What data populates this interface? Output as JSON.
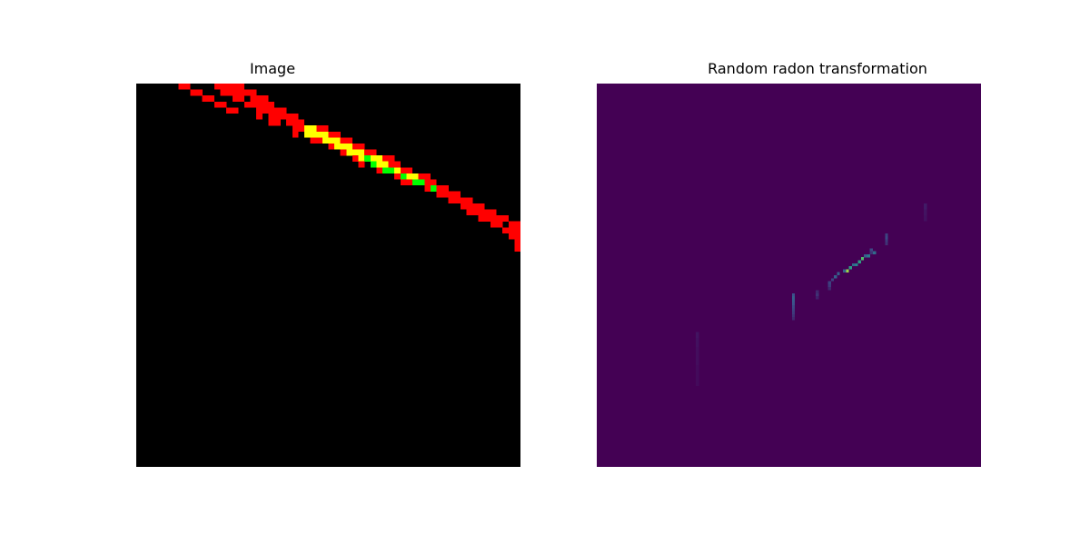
{
  "chart_data": [
    {
      "type": "heatmap",
      "title": "Image",
      "xlabel": "",
      "ylabel": "",
      "grid": false,
      "axes_visible": false,
      "grid_size": [
        64,
        64
      ],
      "colors": {
        "background": "#000000",
        "red": "#ff0000",
        "yellow": "#ffff00",
        "green": "#00ff00"
      },
      "note_cells": "cells listed as [col, row, colorKey] on a 64x64 grid",
      "cells": [
        [
          7,
          0,
          "red"
        ],
        [
          8,
          0,
          "red"
        ],
        [
          13,
          0,
          "red"
        ],
        [
          14,
          0,
          "red"
        ],
        [
          15,
          0,
          "red"
        ],
        [
          16,
          0,
          "red"
        ],
        [
          17,
          0,
          "red"
        ],
        [
          9,
          1,
          "red"
        ],
        [
          10,
          1,
          "red"
        ],
        [
          14,
          1,
          "red"
        ],
        [
          15,
          1,
          "red"
        ],
        [
          16,
          1,
          "red"
        ],
        [
          17,
          1,
          "red"
        ],
        [
          18,
          1,
          "red"
        ],
        [
          19,
          1,
          "red"
        ],
        [
          11,
          2,
          "red"
        ],
        [
          12,
          2,
          "red"
        ],
        [
          16,
          2,
          "red"
        ],
        [
          17,
          2,
          "red"
        ],
        [
          19,
          2,
          "red"
        ],
        [
          20,
          2,
          "red"
        ],
        [
          21,
          2,
          "red"
        ],
        [
          13,
          3,
          "red"
        ],
        [
          14,
          3,
          "red"
        ],
        [
          18,
          3,
          "red"
        ],
        [
          19,
          3,
          "red"
        ],
        [
          20,
          3,
          "red"
        ],
        [
          21,
          3,
          "red"
        ],
        [
          22,
          3,
          "red"
        ],
        [
          15,
          4,
          "red"
        ],
        [
          16,
          4,
          "red"
        ],
        [
          20,
          4,
          "red"
        ],
        [
          21,
          4,
          "red"
        ],
        [
          22,
          4,
          "red"
        ],
        [
          23,
          4,
          "red"
        ],
        [
          24,
          4,
          "red"
        ],
        [
          20,
          5,
          "red"
        ],
        [
          22,
          5,
          "red"
        ],
        [
          23,
          5,
          "red"
        ],
        [
          24,
          5,
          "red"
        ],
        [
          25,
          5,
          "red"
        ],
        [
          26,
          5,
          "red"
        ],
        [
          22,
          6,
          "red"
        ],
        [
          23,
          6,
          "red"
        ],
        [
          25,
          6,
          "red"
        ],
        [
          26,
          6,
          "red"
        ],
        [
          27,
          6,
          "red"
        ],
        [
          26,
          7,
          "red"
        ],
        [
          27,
          7,
          "red"
        ],
        [
          28,
          7,
          "yellow"
        ],
        [
          29,
          7,
          "yellow"
        ],
        [
          30,
          7,
          "red"
        ],
        [
          31,
          7,
          "red"
        ],
        [
          26,
          8,
          "red"
        ],
        [
          28,
          8,
          "yellow"
        ],
        [
          29,
          8,
          "yellow"
        ],
        [
          30,
          8,
          "yellow"
        ],
        [
          31,
          8,
          "yellow"
        ],
        [
          32,
          8,
          "red"
        ],
        [
          33,
          8,
          "red"
        ],
        [
          29,
          9,
          "red"
        ],
        [
          30,
          9,
          "red"
        ],
        [
          31,
          9,
          "yellow"
        ],
        [
          32,
          9,
          "yellow"
        ],
        [
          33,
          9,
          "yellow"
        ],
        [
          34,
          9,
          "red"
        ],
        [
          35,
          9,
          "red"
        ],
        [
          32,
          10,
          "red"
        ],
        [
          33,
          10,
          "yellow"
        ],
        [
          34,
          10,
          "yellow"
        ],
        [
          35,
          10,
          "yellow"
        ],
        [
          36,
          10,
          "red"
        ],
        [
          37,
          10,
          "red"
        ],
        [
          34,
          11,
          "red"
        ],
        [
          35,
          11,
          "yellow"
        ],
        [
          36,
          11,
          "yellow"
        ],
        [
          37,
          11,
          "yellow"
        ],
        [
          38,
          11,
          "red"
        ],
        [
          39,
          11,
          "red"
        ],
        [
          36,
          12,
          "red"
        ],
        [
          37,
          12,
          "yellow"
        ],
        [
          38,
          12,
          "green"
        ],
        [
          39,
          12,
          "yellow"
        ],
        [
          40,
          12,
          "yellow"
        ],
        [
          41,
          12,
          "red"
        ],
        [
          42,
          12,
          "red"
        ],
        [
          37,
          13,
          "red"
        ],
        [
          39,
          13,
          "green"
        ],
        [
          40,
          13,
          "yellow"
        ],
        [
          41,
          13,
          "yellow"
        ],
        [
          42,
          13,
          "red"
        ],
        [
          43,
          13,
          "red"
        ],
        [
          40,
          14,
          "red"
        ],
        [
          41,
          14,
          "green"
        ],
        [
          42,
          14,
          "green"
        ],
        [
          43,
          14,
          "yellow"
        ],
        [
          44,
          14,
          "red"
        ],
        [
          45,
          14,
          "red"
        ],
        [
          43,
          15,
          "red"
        ],
        [
          44,
          15,
          "green"
        ],
        [
          45,
          15,
          "yellow"
        ],
        [
          46,
          15,
          "yellow"
        ],
        [
          47,
          15,
          "red"
        ],
        [
          48,
          15,
          "red"
        ],
        [
          44,
          16,
          "red"
        ],
        [
          45,
          16,
          "red"
        ],
        [
          46,
          16,
          "green"
        ],
        [
          47,
          16,
          "green"
        ],
        [
          48,
          16,
          "red"
        ],
        [
          49,
          16,
          "red"
        ],
        [
          48,
          17,
          "red"
        ],
        [
          49,
          17,
          "green"
        ],
        [
          50,
          17,
          "red"
        ],
        [
          51,
          17,
          "red"
        ],
        [
          50,
          18,
          "red"
        ],
        [
          51,
          18,
          "red"
        ],
        [
          52,
          18,
          "red"
        ],
        [
          53,
          18,
          "red"
        ],
        [
          52,
          19,
          "red"
        ],
        [
          53,
          19,
          "red"
        ],
        [
          54,
          19,
          "red"
        ],
        [
          55,
          19,
          "red"
        ],
        [
          54,
          20,
          "red"
        ],
        [
          55,
          20,
          "red"
        ],
        [
          56,
          20,
          "red"
        ],
        [
          57,
          20,
          "red"
        ],
        [
          55,
          21,
          "red"
        ],
        [
          56,
          21,
          "red"
        ],
        [
          57,
          21,
          "red"
        ],
        [
          58,
          21,
          "red"
        ],
        [
          59,
          21,
          "red"
        ],
        [
          57,
          22,
          "red"
        ],
        [
          58,
          22,
          "red"
        ],
        [
          59,
          22,
          "red"
        ],
        [
          60,
          22,
          "red"
        ],
        [
          61,
          22,
          "red"
        ],
        [
          59,
          23,
          "red"
        ],
        [
          60,
          23,
          "red"
        ],
        [
          62,
          23,
          "red"
        ],
        [
          63,
          23,
          "red"
        ],
        [
          61,
          24,
          "red"
        ],
        [
          62,
          24,
          "red"
        ],
        [
          63,
          24,
          "red"
        ],
        [
          62,
          25,
          "red"
        ],
        [
          63,
          25,
          "red"
        ],
        [
          63,
          26,
          "red"
        ],
        [
          63,
          27,
          "red"
        ]
      ]
    },
    {
      "type": "heatmap",
      "title": "Random radon transformation",
      "xlabel": "",
      "ylabel": "",
      "grid": false,
      "axes_visible": false,
      "grid_size": [
        128,
        128
      ],
      "colormap": "viridis",
      "background_color": "#440154",
      "note_cells": "cells listed as [col, row, normalized intensity 0-1] on a 128x128 grid",
      "cells": [
        [
          109,
          40,
          0.08
        ],
        [
          109,
          41,
          0.08
        ],
        [
          109,
          42,
          0.06
        ],
        [
          109,
          43,
          0.06
        ],
        [
          109,
          44,
          0.05
        ],
        [
          109,
          45,
          0.05
        ],
        [
          96,
          50,
          0.2
        ],
        [
          96,
          51,
          0.22
        ],
        [
          96,
          52,
          0.18
        ],
        [
          96,
          53,
          0.15
        ],
        [
          91,
          55,
          0.22
        ],
        [
          92,
          56,
          0.35
        ],
        [
          91,
          56,
          0.15
        ],
        [
          90,
          57,
          0.4
        ],
        [
          89,
          57,
          0.3
        ],
        [
          88,
          58,
          0.7
        ],
        [
          87,
          59,
          0.55
        ],
        [
          86,
          60,
          0.45
        ],
        [
          85,
          60,
          0.35
        ],
        [
          84,
          61,
          0.55
        ],
        [
          83,
          62,
          0.85
        ],
        [
          82,
          62,
          0.3
        ],
        [
          80,
          63,
          0.3
        ],
        [
          79,
          64,
          0.3
        ],
        [
          78,
          65,
          0.2
        ],
        [
          77,
          66,
          0.2
        ],
        [
          77,
          67,
          0.18
        ],
        [
          77,
          68,
          0.12
        ],
        [
          73,
          69,
          0.12
        ],
        [
          73,
          70,
          0.15
        ],
        [
          73,
          71,
          0.1
        ],
        [
          65,
          70,
          0.25
        ],
        [
          65,
          71,
          0.3
        ],
        [
          65,
          72,
          0.28
        ],
        [
          65,
          73,
          0.25
        ],
        [
          65,
          74,
          0.22
        ],
        [
          65,
          75,
          0.2
        ],
        [
          65,
          76,
          0.18
        ],
        [
          65,
          77,
          0.15
        ],
        [
          65,
          78,
          0.12
        ],
        [
          33,
          83,
          0.06
        ],
        [
          33,
          84,
          0.06
        ],
        [
          33,
          85,
          0.05
        ],
        [
          33,
          86,
          0.05
        ],
        [
          33,
          87,
          0.05
        ],
        [
          33,
          88,
          0.04
        ],
        [
          33,
          89,
          0.04
        ],
        [
          33,
          90,
          0.04
        ],
        [
          33,
          91,
          0.04
        ],
        [
          33,
          92,
          0.04
        ],
        [
          33,
          93,
          0.04
        ],
        [
          33,
          94,
          0.03
        ],
        [
          33,
          95,
          0.03
        ],
        [
          33,
          96,
          0.03
        ],
        [
          33,
          97,
          0.03
        ],
        [
          33,
          98,
          0.03
        ],
        [
          33,
          99,
          0.03
        ],
        [
          33,
          100,
          0.03
        ]
      ]
    }
  ]
}
